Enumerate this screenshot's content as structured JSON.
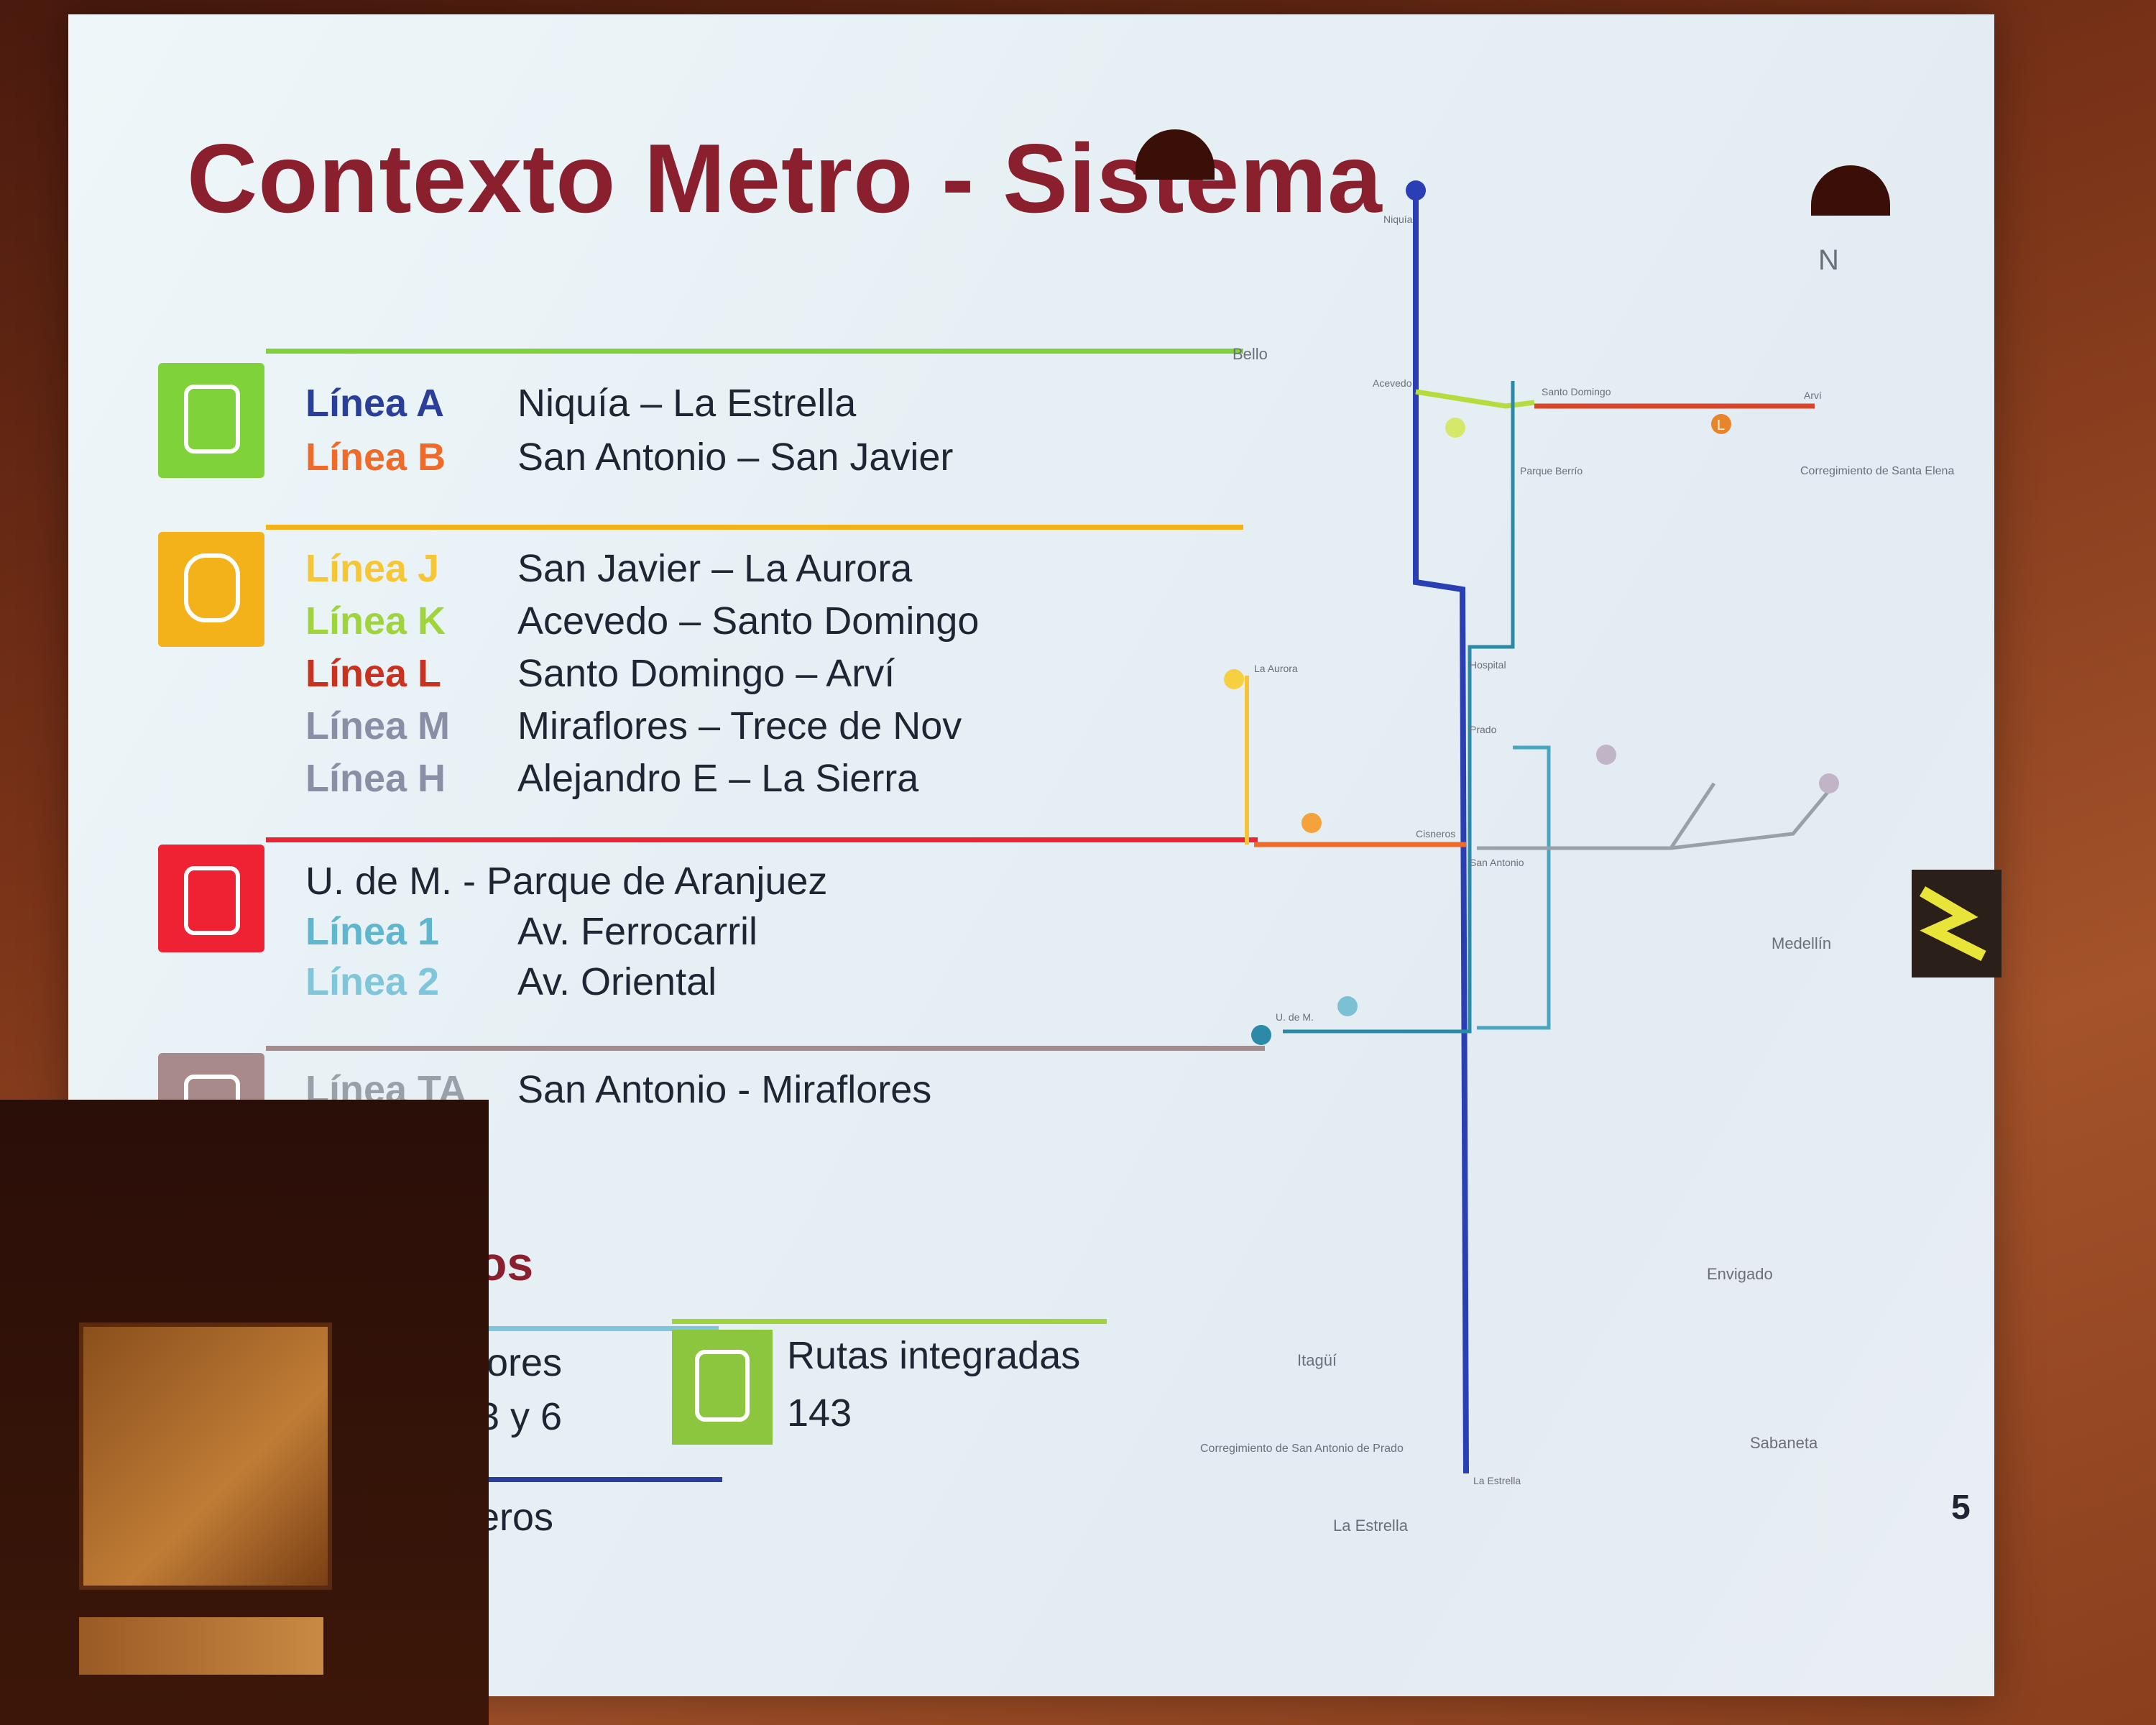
{
  "slide": {
    "title": "Contexto Metro - Sistema",
    "page_number": "5"
  },
  "groups": {
    "metro": {
      "color": "#7fd23a",
      "rows": [
        {
          "line": "Línea A",
          "route": "Niquía – La Estrella",
          "color": "#2a3f9a"
        },
        {
          "line": "Línea B",
          "route": "San Antonio – San Javier",
          "color": "#f06a2a"
        }
      ]
    },
    "metrocable": {
      "color": "#f3b11a",
      "rows": [
        {
          "line": "Línea J",
          "route": "San Javier – La Aurora",
          "color": "#f6c634"
        },
        {
          "line": "Línea K",
          "route": "Acevedo – Santo Domingo",
          "color": "#9fd43c"
        },
        {
          "line": "Línea L",
          "route": "Santo Domingo – Arví",
          "color": "#c8321e"
        },
        {
          "line": "Línea M",
          "route": "Miraflores – Trece de Nov",
          "color": "#8a8fa6"
        },
        {
          "line": "Línea H",
          "route": "Alejandro E – La Sierra",
          "color": "#8a8fa6"
        }
      ]
    },
    "metroplus": {
      "color": "#ee2233",
      "rows": [
        {
          "line": "",
          "route": "U. de M. - Parque de Aranjuez",
          "color": "#1f2533"
        },
        {
          "line": "Línea 1",
          "route": "Av. Ferrocarril",
          "color": "#5fb7cf"
        },
        {
          "line": "Línea 2",
          "route": "Av. Oriental",
          "color": "#7fc6da"
        }
      ]
    },
    "tranvia": {
      "color": "#a88a8a",
      "rows": [
        {
          "line": "Línea TA",
          "route": "San Antonio - Miraflores",
          "color": "#9aa0aa"
        }
      ]
    }
  },
  "partial_texts": {
    "heading_fragment": "os",
    "card1_fragment": "lores",
    "card1_value_fragment": "3 y 6",
    "card3_fragment": "eros"
  },
  "integrated_routes": {
    "label": "Rutas integradas",
    "value": "143"
  },
  "map": {
    "labels": {
      "bello": "Bello",
      "medellin": "Medellín",
      "itagui": "Itagüí",
      "envigado": "Envigado",
      "sabaneta": "Sabaneta",
      "la_estrella": "La Estrella",
      "santa_elena": "Corregimiento de Santa Elena",
      "san_antonio_prado": "Corregimiento de San Antonio de Prado",
      "north": "N",
      "niquia": "Niquía",
      "acevedo": "Acevedo",
      "santo_domingo": "Santo Domingo",
      "arvi": "Arví",
      "parque_berrio": "Parque Berrío",
      "hospital": "Hospital",
      "prado": "Prado",
      "cisneros": "Cisneros",
      "san_antonio": "San Antonio",
      "la_aurora": "La Aurora",
      "u_de_m": "U. de M.",
      "la_estrella_station": "La Estrella",
      "line_l_badge": "L"
    },
    "colors": {
      "line_a": "#2b3fb5",
      "line_b": "#f26a2a",
      "line_k": "#b4dc3c",
      "line_l": "#d9452a",
      "line_j": "#f5c43a",
      "line_1": "#2b8aa8",
      "line_2": "#4aa6c0",
      "line_ta": "#9aa0a8"
    }
  }
}
